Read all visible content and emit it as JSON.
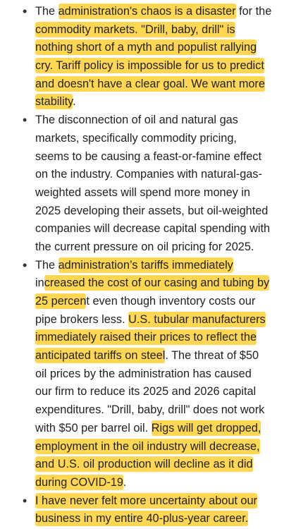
{
  "items": [
    {
      "lines": [
        [
          {
            "text": "The "
          },
          {
            "text": "administration's chaos is a disaster",
            "highlight": true
          },
          {
            "text": " for the"
          }
        ],
        [
          {
            "text": "commodity markets. \"Drill, baby, drill\" is",
            "highlight": true
          }
        ],
        [
          {
            "text": "nothing short of a myth and populist rallying",
            "highlight": true
          }
        ],
        [
          {
            "text": "cry. Tariff policy is impossible for us to predict",
            "highlight": true
          }
        ],
        [
          {
            "text": "and doesn't have a clear goal. We want more",
            "highlight": true
          }
        ],
        [
          {
            "text": "stability",
            "highlight": true
          },
          {
            "text": "."
          }
        ]
      ]
    },
    {
      "lines": [
        [
          {
            "text": "The disconnection of oil and natural gas"
          }
        ],
        [
          {
            "text": "markets, specifically commodity pricing,"
          }
        ],
        [
          {
            "text": "seems to be causing a feast-or-famine effect"
          }
        ],
        [
          {
            "text": "on the industry. Companies with natural-gas-"
          }
        ],
        [
          {
            "text": "weighted assets will spend more money in"
          }
        ],
        [
          {
            "text": "2025 developing their assets, but oil-weighted"
          }
        ],
        [
          {
            "text": "companies will decrease capital spending with"
          }
        ],
        [
          {
            "text": "the current pressure on oil pricing for 2025."
          }
        ]
      ]
    },
    {
      "lines": [
        [
          {
            "text": "The "
          },
          {
            "text": "administration’s tariffs immediately",
            "highlight": true
          }
        ],
        [
          {
            "text": "in"
          },
          {
            "text": "creased the cost of our casing and tubing by",
            "highlight": true
          }
        ],
        [
          {
            "text": "25 percen",
            "highlight": true
          },
          {
            "text": "t even though inventory costs our"
          }
        ],
        [
          {
            "text": "pipe brokers less. "
          },
          {
            "text": "U.S. tubular manufacturers",
            "highlight": true
          }
        ],
        [
          {
            "text": "immediately raised their prices to reflect the",
            "highlight": true
          }
        ],
        [
          {
            "text": "anticipated tariffs on steel",
            "highlight": true
          },
          {
            "text": ". The threat of $50"
          }
        ],
        [
          {
            "text": "oil prices by the administration has caused"
          }
        ],
        [
          {
            "text": "our firm to reduce its 2025 and 2026 capital"
          }
        ],
        [
          {
            "text": "expenditures. \"Drill, baby, drill\" does not work"
          }
        ],
        [
          {
            "text": "with $50 per barrel oil. "
          },
          {
            "text": "Rigs will get dropped,",
            "highlight": true
          }
        ],
        [
          {
            "text": "employment in the oil industry will decrease,",
            "highlight": true
          }
        ],
        [
          {
            "text": "and U.S. oil production will decline as it did",
            "highlight": true
          }
        ],
        [
          {
            "text": "during COVID-19",
            "highlight": true
          },
          {
            "text": "."
          }
        ]
      ]
    },
    {
      "lines": [
        [
          {
            "text": "I have never felt more uncertainty about our",
            "highlight": true
          }
        ],
        [
          {
            "text": "business in my entire 40-plus-year career.",
            "highlight": true
          }
        ]
      ]
    }
  ]
}
